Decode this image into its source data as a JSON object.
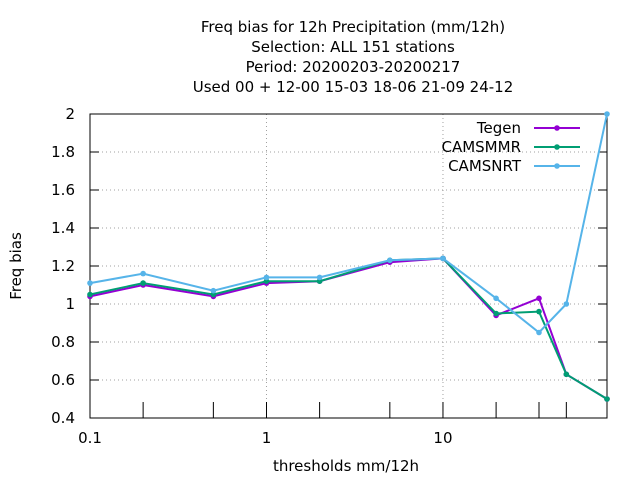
{
  "chart_data": {
    "type": "line",
    "title_lines": [
      "Freq bias  for 12h Precipitation (mm/12h)",
      "Selection: ALL    151 stations",
      "Period: 20200203-20200217",
      "Used  00 + 12-00 15-03 18-06 21-09 24-12"
    ],
    "xlabel": "thresholds mm/12h",
    "ylabel": "Freq bias",
    "x_scale": "log",
    "xlim": [
      0.1,
      85
    ],
    "ylim": [
      0.4,
      2.0
    ],
    "x_ticks": [
      0.1,
      1,
      10
    ],
    "x_tick_labels": [
      "0.1",
      "1",
      "10"
    ],
    "x_minor_ticks": [
      0.2,
      0.5,
      2,
      5,
      20,
      35,
      50
    ],
    "y_ticks": [
      0.4,
      0.6,
      0.8,
      1.0,
      1.2,
      1.4,
      1.6,
      1.8,
      2.0
    ],
    "y_tick_labels": [
      "0.4",
      "0.6",
      "0.8",
      "1",
      "1.2",
      "1.4",
      "1.6",
      "1.8",
      "2"
    ],
    "grid": true,
    "legend_position": "top-right",
    "x": [
      0.1,
      0.2,
      0.5,
      1,
      2,
      5,
      10,
      20,
      35,
      50,
      85
    ],
    "series": [
      {
        "name": "Tegen",
        "color": "#9400d3",
        "values": [
          1.04,
          1.1,
          1.04,
          1.11,
          1.12,
          1.22,
          1.24,
          0.94,
          1.03,
          0.63,
          0.5
        ]
      },
      {
        "name": "CAMSMMR",
        "color": "#009e73",
        "values": [
          1.05,
          1.11,
          1.05,
          1.12,
          1.12,
          1.23,
          1.24,
          0.95,
          0.96,
          0.63,
          0.5
        ]
      },
      {
        "name": "CAMSNRT",
        "color": "#56b4e9",
        "values": [
          1.11,
          1.16,
          1.07,
          1.14,
          1.14,
          1.23,
          1.24,
          1.03,
          0.85,
          1.0,
          2.0
        ]
      }
    ]
  }
}
